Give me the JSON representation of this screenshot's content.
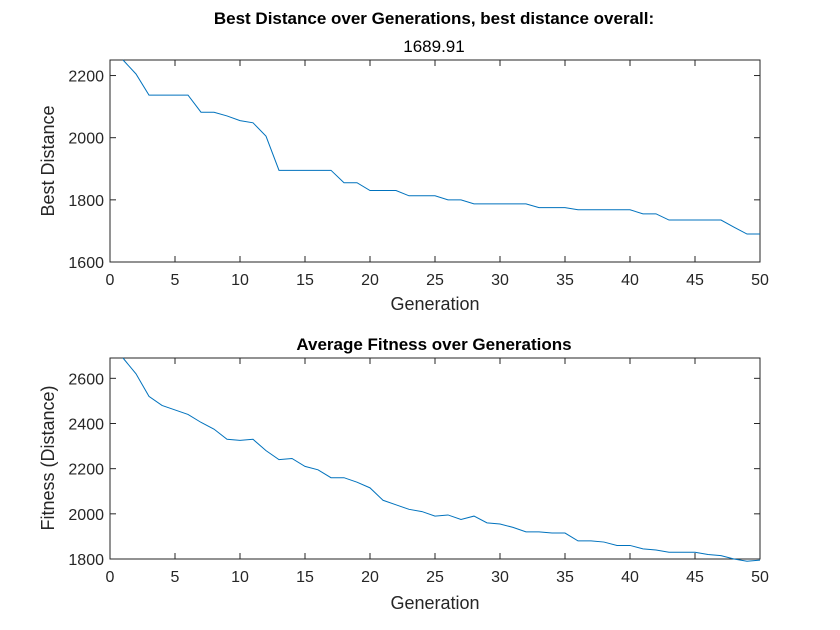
{
  "figure_colors": {
    "series": "#0072BD",
    "axes": "#262626",
    "background": "#ffffff"
  },
  "chart_data": [
    {
      "type": "line",
      "title": "Best Distance over Generations, best distance overall:",
      "subtitle": "1689.91",
      "xlabel": "Generation",
      "ylabel": "Best Distance",
      "xlim": [
        0,
        50
      ],
      "ylim": [
        1600,
        2250
      ],
      "xticks": [
        0,
        5,
        10,
        15,
        20,
        25,
        30,
        35,
        40,
        45,
        50
      ],
      "yticks": [
        1600,
        1800,
        2000,
        2200
      ],
      "grid": false,
      "series": [
        {
          "x": [
            1,
            2,
            3,
            4,
            5,
            6,
            7,
            8,
            9,
            10,
            11,
            12,
            13,
            14,
            15,
            16,
            17,
            18,
            19,
            20,
            21,
            22,
            23,
            24,
            25,
            26,
            27,
            28,
            29,
            30,
            31,
            32,
            33,
            34,
            35,
            36,
            37,
            38,
            39,
            40,
            41,
            42,
            43,
            44,
            45,
            46,
            47,
            48,
            49,
            50
          ],
          "values": [
            2250,
            2205,
            2137,
            2137,
            2137,
            2137,
            2082,
            2082,
            2070,
            2055,
            2048,
            2005,
            1895,
            1895,
            1895,
            1895,
            1895,
            1855,
            1855,
            1830,
            1830,
            1830,
            1813,
            1813,
            1813,
            1800,
            1800,
            1787,
            1787,
            1787,
            1787,
            1787,
            1775,
            1775,
            1775,
            1768,
            1768,
            1768,
            1768,
            1768,
            1755,
            1755,
            1735,
            1735,
            1735,
            1735,
            1735,
            1712,
            1690,
            1690
          ]
        }
      ]
    },
    {
      "type": "line",
      "title": "Average Fitness over Generations",
      "xlabel": "Generation",
      "ylabel": "Fitness (Distance)",
      "xlim": [
        0,
        50
      ],
      "ylim": [
        1800,
        2690
      ],
      "xticks": [
        0,
        5,
        10,
        15,
        20,
        25,
        30,
        35,
        40,
        45,
        50
      ],
      "yticks": [
        1800,
        2000,
        2200,
        2400,
        2600
      ],
      "grid": false,
      "series": [
        {
          "x": [
            1,
            2,
            3,
            4,
            5,
            6,
            7,
            8,
            9,
            10,
            11,
            12,
            13,
            14,
            15,
            16,
            17,
            18,
            19,
            20,
            21,
            22,
            23,
            24,
            25,
            26,
            27,
            28,
            29,
            30,
            31,
            32,
            33,
            34,
            35,
            36,
            37,
            38,
            39,
            40,
            41,
            42,
            43,
            44,
            45,
            46,
            47,
            48,
            49,
            50
          ],
          "values": [
            2690,
            2620,
            2520,
            2480,
            2460,
            2440,
            2405,
            2375,
            2330,
            2325,
            2330,
            2280,
            2240,
            2245,
            2210,
            2195,
            2160,
            2160,
            2140,
            2115,
            2060,
            2040,
            2020,
            2010,
            1990,
            1995,
            1975,
            1990,
            1960,
            1955,
            1940,
            1920,
            1920,
            1915,
            1915,
            1880,
            1880,
            1875,
            1860,
            1860,
            1845,
            1840,
            1830,
            1830,
            1830,
            1820,
            1815,
            1800,
            1790,
            1795
          ]
        }
      ]
    }
  ]
}
